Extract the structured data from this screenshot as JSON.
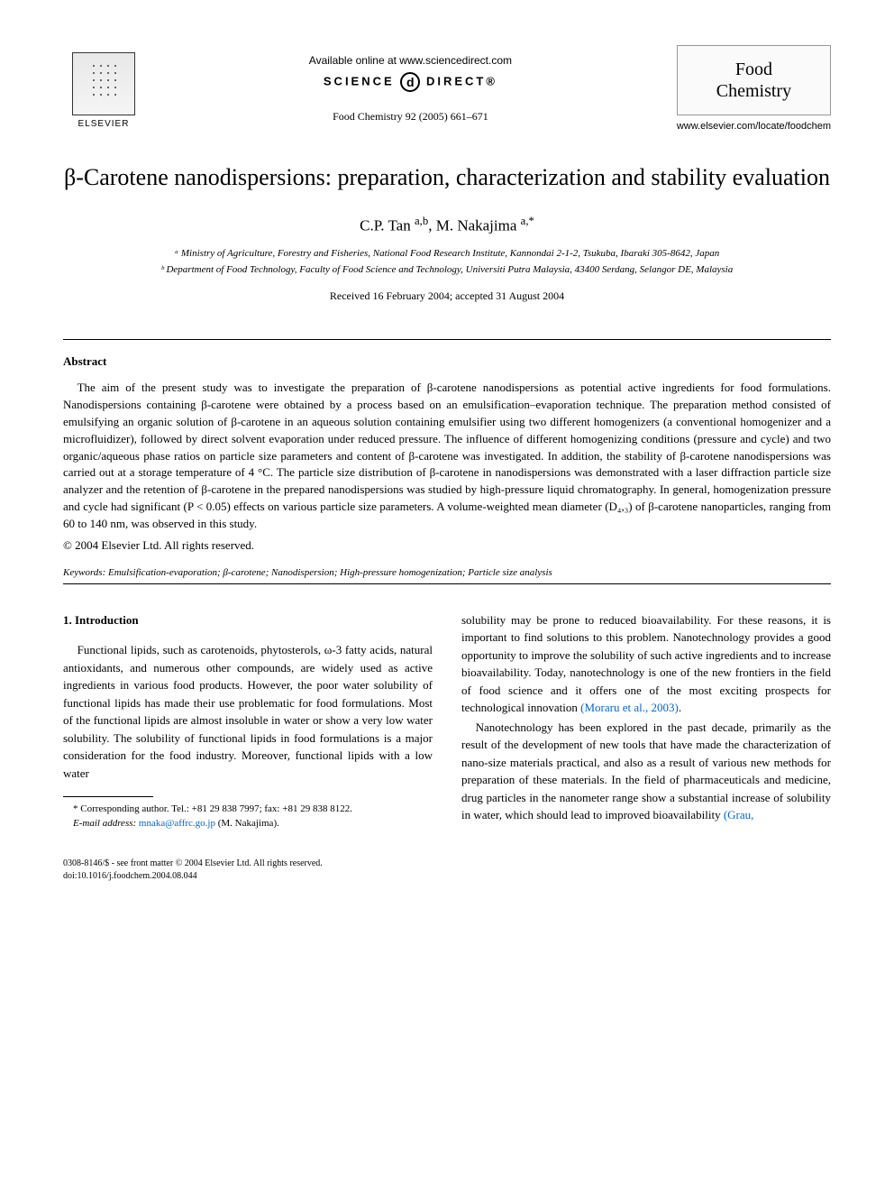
{
  "header": {
    "available_online": "Available online at www.sciencedirect.com",
    "science_direct_left": "SCIENCE",
    "science_direct_right": "DIRECT®",
    "citation": "Food Chemistry 92 (2005) 661–671",
    "elsevier_label": "ELSEVIER",
    "journal_name_line1": "Food",
    "journal_name_line2": "Chemistry",
    "journal_url": "www.elsevier.com/locate/foodchem"
  },
  "article": {
    "title": "β-Carotene nanodispersions: preparation, characterization and stability evaluation",
    "authors": "C.P. Tan ",
    "author_sup1": "a,b",
    "authors2": ", M. Nakajima ",
    "author_sup2": "a,*",
    "affiliation_a": "ᵃ Ministry of Agriculture, Forestry and Fisheries, National Food Research Institute, Kannondai 2-1-2, Tsukuba, Ibaraki 305-8642, Japan",
    "affiliation_b": "ᵇ Department of Food Technology, Faculty of Food Science and Technology, Universiti Putra Malaysia, 43400 Serdang, Selangor DE, Malaysia",
    "received": "Received 16 February 2004; accepted 31 August 2004"
  },
  "abstract": {
    "heading": "Abstract",
    "body": "The aim of the present study was to investigate the preparation of β-carotene nanodispersions as potential active ingredients for food formulations. Nanodispersions containing β-carotene were obtained by a process based on an emulsification–evaporation technique. The preparation method consisted of emulsifying an organic solution of β-carotene in an aqueous solution containing emulsifier using two different homogenizers (a conventional homogenizer and a microfluidizer), followed by direct solvent evaporation under reduced pressure. The influence of different homogenizing conditions (pressure and cycle) and two organic/aqueous phase ratios on particle size parameters and content of β-carotene was investigated. In addition, the stability of β-carotene nanodispersions was carried out at a storage temperature of 4 °C. The particle size distribution of β-carotene in nanodispersions was demonstrated with a laser diffraction particle size analyzer and the retention of β-carotene in the prepared nanodispersions was studied by high-pressure liquid chromatography. In general, homogenization pressure and cycle had significant (P < 0.05) effects on various particle size parameters. A volume-weighted mean diameter (D₄,₃) of β-carotene nanoparticles, ranging from 60 to 140 nm, was observed in this study.",
    "copyright": "© 2004 Elsevier Ltd. All rights reserved."
  },
  "keywords": {
    "label": "Keywords:",
    "text": " Emulsification-evaporation; β-carotene; Nanodispersion; High-pressure homogenization; Particle size analysis"
  },
  "introduction": {
    "heading": "1. Introduction",
    "col1_p1": "Functional lipids, such as carotenoids, phytosterols, ω-3 fatty acids, natural antioxidants, and numerous other compounds, are widely used as active ingredients in various food products. However, the poor water solubility of functional lipids has made their use problematic for food formulations. Most of the functional lipids are almost insoluble in water or show a very low water solubility. The solubility of functional lipids in food formulations is a major consideration for the food industry. Moreover, functional lipids with a low water",
    "col2_p1": "solubility may be prone to reduced bioavailability. For these reasons, it is important to find solutions to this problem. Nanotechnology provides a good opportunity to improve the solubility of such active ingredients and to increase bioavailability. Today, nanotechnology is one of the new frontiers in the field of food science and it offers one of the most exciting prospects for technological innovation ",
    "col2_ref1": "(Moraru et al., 2003)",
    "col2_p1_end": ".",
    "col2_p2": "Nanotechnology has been explored in the past decade, primarily as the result of the development of new tools that have made the characterization of nano-size materials practical, and also as a result of various new methods for preparation of these materials. In the field of pharmaceuticals and medicine, drug particles in the nanometer range show a substantial increase of solubility in water, which should lead to improved bioavailability ",
    "col2_ref2": "(Grau,"
  },
  "footnotes": {
    "corresponding": "* Corresponding author. Tel.: +81 29 838 7997; fax: +81 29 838 8122.",
    "email_label": "E-mail address:",
    "email": " mnaka@affrc.go.jp",
    "email_suffix": " (M. Nakajima)."
  },
  "doi": {
    "line1": "0308-8146/$ - see front matter © 2004 Elsevier Ltd. All rights reserved.",
    "line2": "doi:10.1016/j.foodchem.2004.08.044"
  },
  "styling": {
    "page_bg": "#ffffff",
    "text_color": "#000000",
    "link_color": "#0066cc",
    "border_color": "#999999",
    "title_fontsize": 26,
    "author_fontsize": 17,
    "body_fontsize": 13,
    "affiliation_fontsize": 11,
    "footnote_fontsize": 11,
    "doi_fontsize": 10
  }
}
